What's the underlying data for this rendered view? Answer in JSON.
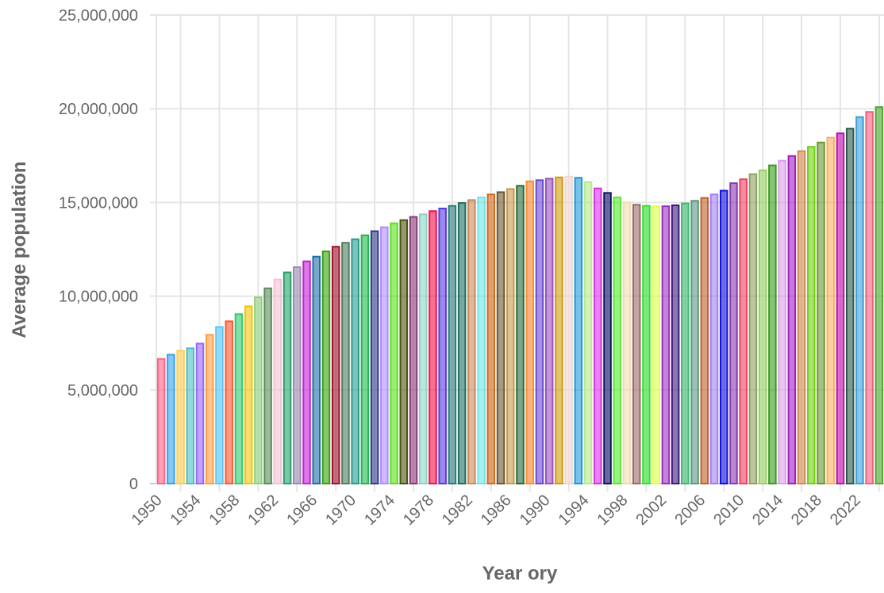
{
  "chart_data": {
    "type": "bar",
    "title": "",
    "xlabel": "Year ory",
    "ylabel": "Average population",
    "ylim": [
      0,
      25000000
    ],
    "yticks": [
      "0",
      "5,000,000",
      "10,000,000",
      "15,000,000",
      "20,000,000",
      "25,000,000"
    ],
    "ytick_values": [
      0,
      5000000,
      10000000,
      15000000,
      20000000,
      25000000
    ],
    "xtick_labels": [
      "1950",
      "1954",
      "1958",
      "1962",
      "1966",
      "1970",
      "1974",
      "1978",
      "1982",
      "1986",
      "1990",
      "1994",
      "1998",
      "2002",
      "2006",
      "2010",
      "2014",
      "2018",
      "2022"
    ],
    "grid": true,
    "legend": "none",
    "categories": [
      1950,
      1951,
      1952,
      1953,
      1954,
      1955,
      1956,
      1957,
      1958,
      1959,
      1960,
      1961,
      1962,
      1963,
      1964,
      1965,
      1966,
      1967,
      1968,
      1969,
      1970,
      1971,
      1972,
      1973,
      1974,
      1975,
      1976,
      1977,
      1978,
      1979,
      1980,
      1981,
      1982,
      1983,
      1984,
      1985,
      1986,
      1987,
      1988,
      1989,
      1990,
      1991,
      1992,
      1993,
      1994,
      1995,
      1996,
      1997,
      1998,
      1999,
      2000,
      2001,
      2002,
      2003,
      2004,
      2005,
      2006,
      2007,
      2008,
      2009,
      2010,
      2011,
      2012,
      2013,
      2014,
      2015,
      2016,
      2017,
      2018,
      2019,
      2020,
      2021,
      2022,
      2023,
      2024
    ],
    "values": [
      6650000,
      6880000,
      7090000,
      7220000,
      7470000,
      7940000,
      8360000,
      8660000,
      9040000,
      9460000,
      9940000,
      10420000,
      10890000,
      11270000,
      11550000,
      11860000,
      12110000,
      12390000,
      12640000,
      12850000,
      13040000,
      13250000,
      13470000,
      13680000,
      13890000,
      14060000,
      14230000,
      14370000,
      14540000,
      14680000,
      14820000,
      14970000,
      15130000,
      15270000,
      15430000,
      15550000,
      15720000,
      15890000,
      16130000,
      16190000,
      16270000,
      16340000,
      16380000,
      16320000,
      16090000,
      15750000,
      15510000,
      15270000,
      15000000,
      14880000,
      14820000,
      14800000,
      14800000,
      14850000,
      14950000,
      15090000,
      15240000,
      15430000,
      15630000,
      16030000,
      16240000,
      16510000,
      16720000,
      16980000,
      17230000,
      17480000,
      17740000,
      17970000,
      18200000,
      18460000,
      18690000,
      18940000,
      19560000,
      19830000,
      20090000
    ],
    "colors": [
      "#ff6384",
      "#36a2eb",
      "#ffce56",
      "#4bc0c0",
      "#9966ff",
      "#ff9f40",
      "#5ac8fa",
      "#ff5733",
      "#2ecc71",
      "#f1c40f",
      "#8fd17f",
      "#5b8c5a",
      "#f4c2d7",
      "#27a06b",
      "#9b8bb0",
      "#c41fd6",
      "#1f6fa8",
      "#3aa00f",
      "#a0102a",
      "#4f7d5e",
      "#279a90",
      "#22b84a",
      "#303a8a",
      "#b08cff",
      "#5be01f",
      "#4a5410",
      "#8a3a7a",
      "#8fd3c8",
      "#f0104a",
      "#5a3ae0",
      "#2a7a78",
      "#1e6e5e",
      "#c88a5a",
      "#6ee6e6",
      "#d2691e",
      "#6b5a30",
      "#c89a50",
      "#2a6a3a",
      "#ff8c30",
      "#6a4ad0",
      "#9a50c0",
      "#d09a10",
      "#f0d8d0",
      "#1a9ad8",
      "#b8e890",
      "#d830e8",
      "#101060",
      "#5ae830",
      "#f0dcb0",
      "#9a6a6a",
      "#30e030",
      "#e0ff50",
      "#9a30c0",
      "#3a1a7a",
      "#3ab870",
      "#5a9a80",
      "#c0602a",
      "#a080f0",
      "#1010e0",
      "#8a3ab0",
      "#f04060",
      "#90a060",
      "#98d060",
      "#3a9a20",
      "#d8a0e8",
      "#a020c0",
      "#d08a50",
      "#70d010",
      "#6a9a30",
      "#f8b060",
      "#c010b0",
      "#2a5a4a",
      "#3aa0d8",
      "#f06080",
      "#50a830"
    ]
  }
}
